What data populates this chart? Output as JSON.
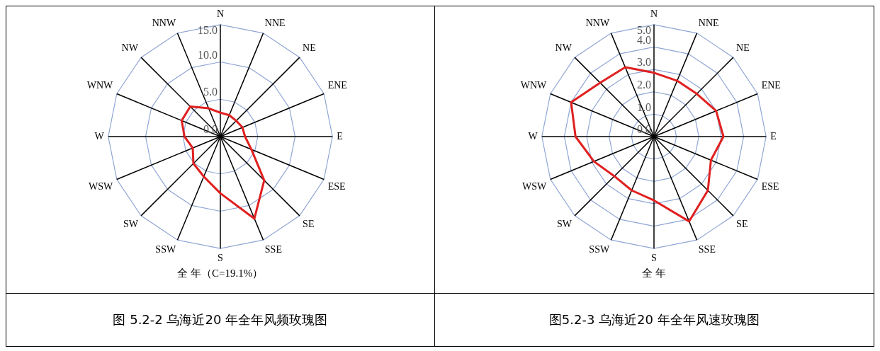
{
  "chart_data": [
    {
      "type": "radar",
      "title": "图 5.2-2 乌海近20 年全年风频玫瑰图",
      "subtitle": "全 年（C=19.1%）",
      "categories": [
        "N",
        "NNE",
        "NE",
        "ENE",
        "E",
        "ESE",
        "SE",
        "SSE",
        "S",
        "SSW",
        "SW",
        "WSW",
        "W",
        "WNW",
        "NW",
        "NNW"
      ],
      "series": [
        {
          "color": "#e02020",
          "values": [
            3.2,
            3.1,
            3.0,
            3.2,
            3.3,
            4.5,
            8.3,
            11.9,
            7.6,
            5.8,
            5.1,
            4.0,
            4.8,
            5.6,
            5.7,
            4.1
          ]
        }
      ],
      "ylim": [
        0,
        15
      ],
      "yticks": [
        {
          "value": 0,
          "label": "0.0"
        },
        {
          "value": 5,
          "label": "5.0"
        },
        {
          "value": 10,
          "label": "10.0"
        },
        {
          "value": 15,
          "label": "15.0"
        }
      ],
      "grid": true
    },
    {
      "type": "radar",
      "title": "图5.2-3 乌海近20 年全年风速玫瑰图",
      "subtitle": "全 年",
      "categories": [
        "N",
        "NNE",
        "NE",
        "ENE",
        "E",
        "ESE",
        "SE",
        "SSE",
        "S",
        "SSW",
        "SW",
        "WSW",
        "W",
        "WNW",
        "NW",
        "NNW"
      ],
      "series": [
        {
          "color": "#e02020",
          "values": [
            2.85,
            2.7,
            2.7,
            3.0,
            3.1,
            2.75,
            3.4,
            4.1,
            2.85,
            2.6,
            2.5,
            2.9,
            3.5,
            4.0,
            3.4,
            3.35
          ]
        }
      ],
      "ylim": [
        0,
        5
      ],
      "yticks": [
        {
          "value": 0,
          "label": "0.0"
        },
        {
          "value": 1,
          "label": "1.0"
        },
        {
          "value": 2,
          "label": "2.0"
        },
        {
          "value": 3,
          "label": "3.0"
        },
        {
          "value": 4,
          "label": "4.0"
        },
        {
          "value": 5,
          "label": "5.0"
        }
      ],
      "grid": true
    }
  ]
}
